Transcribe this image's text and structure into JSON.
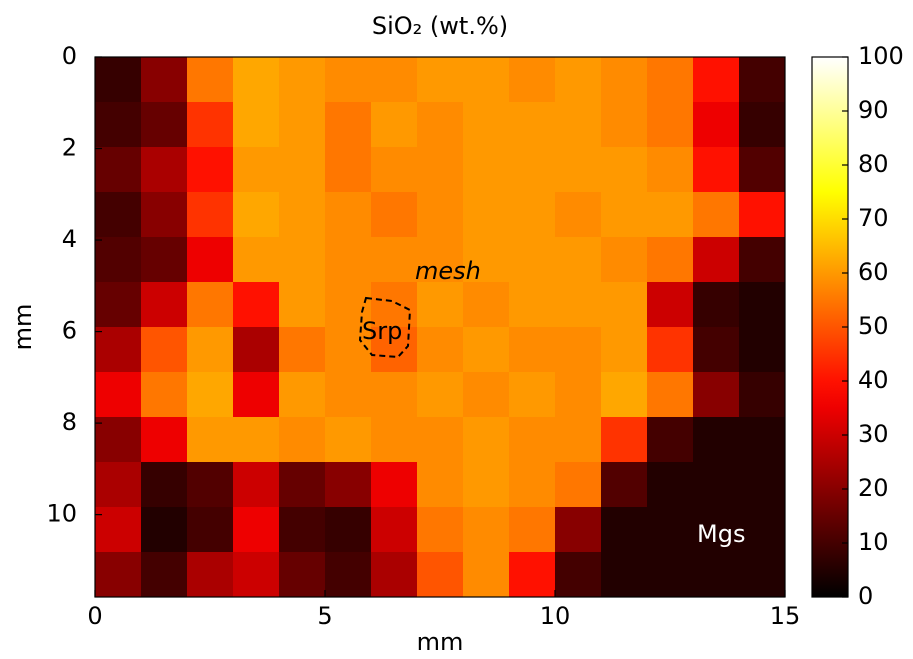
{
  "chart_data": {
    "type": "heatmap",
    "title": "SiO₂ (wt.%)",
    "x_label": "mm",
    "y_label": "mm",
    "xlim": [
      0,
      15
    ],
    "xticks": [
      0,
      5,
      10,
      15
    ],
    "ylim": [
      0,
      11.8
    ],
    "yticks": [
      0,
      2,
      4,
      6,
      8,
      10
    ],
    "y_reversed": true,
    "colormap": "hot",
    "clim": [
      0,
      100
    ],
    "cticks": [
      0,
      10,
      20,
      30,
      40,
      50,
      60,
      70,
      80,
      90,
      100
    ],
    "z": [
      [
        8,
        20,
        55,
        62,
        60,
        58,
        58,
        60,
        60,
        58,
        60,
        58,
        55,
        40,
        10
      ],
      [
        10,
        15,
        45,
        62,
        60,
        55,
        60,
        58,
        60,
        60,
        60,
        58,
        55,
        35,
        8
      ],
      [
        15,
        25,
        40,
        60,
        60,
        55,
        58,
        58,
        60,
        60,
        60,
        60,
        58,
        40,
        12
      ],
      [
        10,
        20,
        45,
        62,
        60,
        58,
        55,
        58,
        60,
        60,
        58,
        60,
        60,
        55,
        40
      ],
      [
        12,
        15,
        35,
        60,
        60,
        58,
        58,
        58,
        60,
        60,
        60,
        58,
        55,
        30,
        10
      ],
      [
        15,
        30,
        55,
        40,
        60,
        58,
        55,
        60,
        58,
        60,
        60,
        60,
        30,
        8,
        5
      ],
      [
        25,
        50,
        60,
        25,
        55,
        58,
        52,
        58,
        60,
        58,
        58,
        60,
        45,
        10,
        5
      ],
      [
        35,
        55,
        62,
        35,
        60,
        58,
        58,
        60,
        58,
        60,
        58,
        62,
        55,
        20,
        8
      ],
      [
        20,
        35,
        60,
        60,
        58,
        60,
        58,
        58,
        60,
        58,
        58,
        45,
        10,
        5,
        5
      ],
      [
        25,
        8,
        12,
        30,
        15,
        20,
        35,
        58,
        60,
        58,
        55,
        12,
        5,
        5,
        5
      ],
      [
        30,
        5,
        10,
        35,
        10,
        8,
        30,
        55,
        58,
        55,
        20,
        5,
        5,
        5,
        5
      ],
      [
        20,
        10,
        25,
        30,
        15,
        10,
        25,
        50,
        58,
        40,
        10,
        5,
        5,
        5,
        5
      ]
    ],
    "annotations": [
      "mesh",
      "Srp",
      "Mgs"
    ]
  }
}
